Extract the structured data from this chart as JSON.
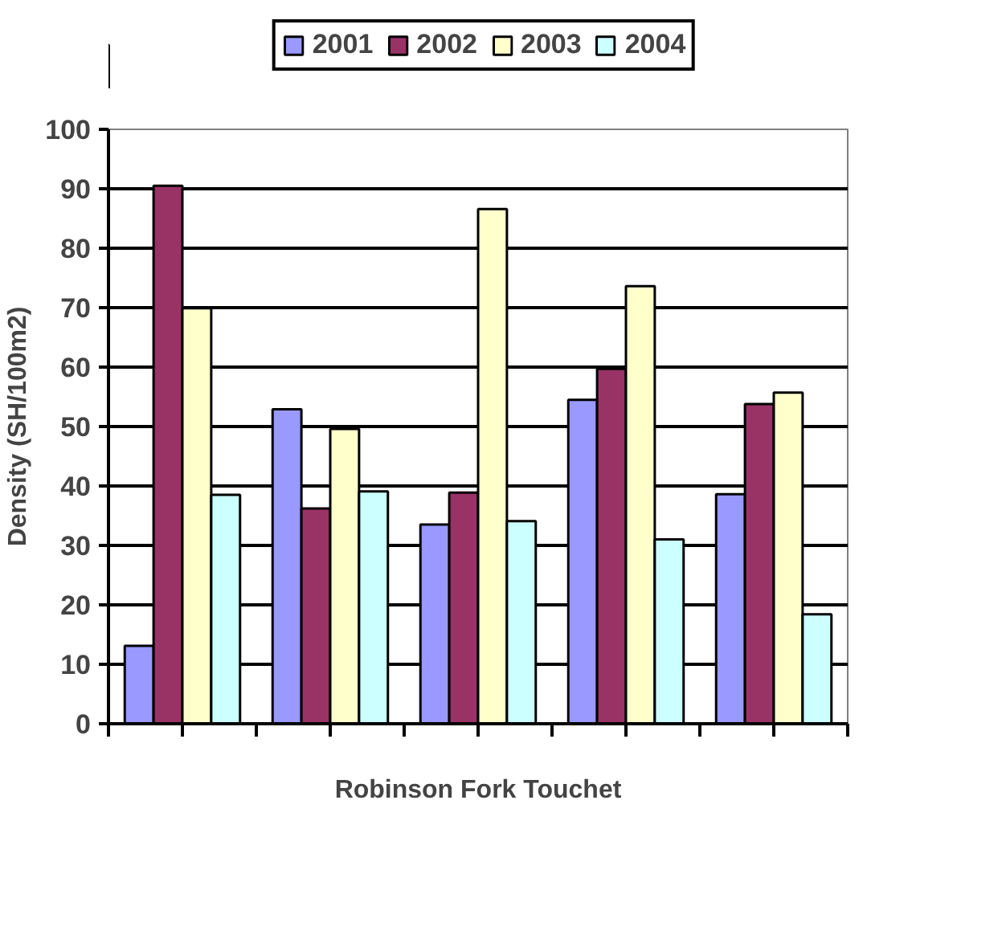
{
  "chart_data": {
    "type": "bar",
    "xlabel": "Robinson Fork Touchet",
    "ylabel": "Density (SH/100m2)",
    "categories": [
      null,
      null,
      null,
      null,
      null
    ],
    "series": [
      {
        "name": "2001",
        "color": "#9999ff",
        "values": [
          13.1,
          52.9,
          33.5,
          54.5,
          38.6
        ]
      },
      {
        "name": "2002",
        "color": "#993366",
        "values": [
          90.5,
          36.2,
          38.9,
          59.7,
          53.8
        ]
      },
      {
        "name": "2003",
        "color": "#ffffcc",
        "values": [
          69.9,
          49.6,
          86.6,
          73.6,
          55.7
        ]
      },
      {
        "name": "2004",
        "color": "#ccffff",
        "values": [
          38.5,
          39.1,
          34.1,
          31.0,
          18.4
        ]
      }
    ],
    "ylim": [
      0,
      100
    ],
    "yticks": [
      0,
      10,
      20,
      30,
      40,
      50,
      60,
      70,
      80,
      90,
      100
    ],
    "grid": "y",
    "legend": "top"
  }
}
